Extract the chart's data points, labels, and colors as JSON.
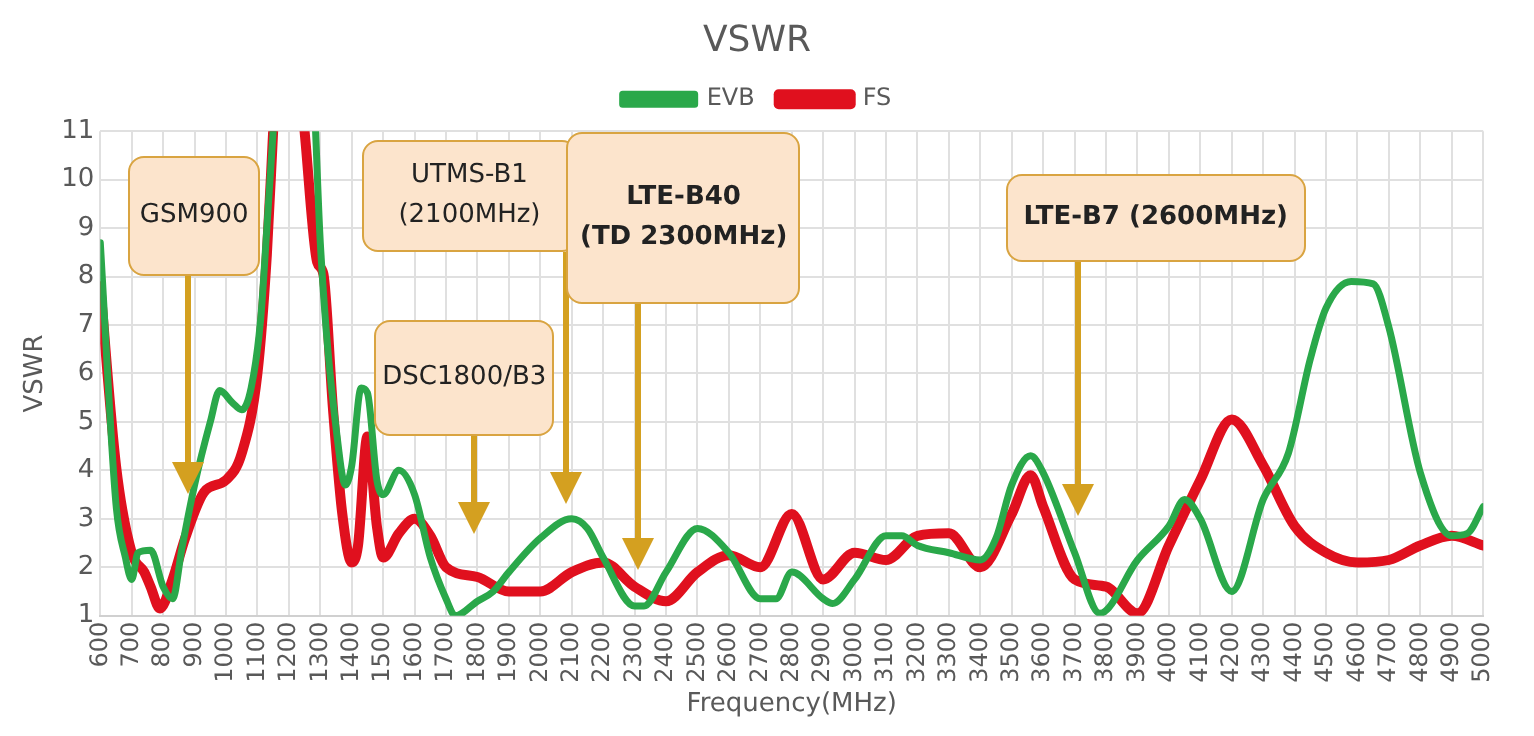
{
  "chart_data": {
    "type": "line",
    "title": "VSWR",
    "xlabel": "Frequency(MHz)",
    "ylabel": "VSWR",
    "xlim": [
      600,
      5000
    ],
    "xticks": [
      600,
      700,
      800,
      900,
      1000,
      1100,
      1200,
      1300,
      1400,
      1500,
      1600,
      1700,
      1800,
      1900,
      2000,
      2100,
      2200,
      2300,
      2400,
      2500,
      2600,
      2700,
      2800,
      2900,
      3000,
      3100,
      3200,
      3300,
      3400,
      3500,
      3600,
      3700,
      3800,
      3900,
      4000,
      4100,
      4200,
      4300,
      4400,
      4500,
      4600,
      4700,
      4800,
      4900,
      5000
    ],
    "ylim": [
      1,
      11
    ],
    "yticks": [
      1,
      2,
      3,
      4,
      5,
      6,
      7,
      8,
      9,
      10,
      11
    ],
    "grid": true,
    "legend": "top",
    "marker": "none",
    "line_style": "solid",
    "series": [
      {
        "name": "EVB",
        "color": "#2aa84a",
        "x": [
          600,
          650,
          680,
          700,
          720,
          760,
          800,
          830,
          860,
          900,
          950,
          980,
          1020,
          1050,
          1080,
          1110,
          1130,
          1150,
          1200,
          1285,
          1300,
          1360,
          1380,
          1400,
          1430,
          1450,
          1480,
          1500,
          1550,
          1600,
          1650,
          1700,
          1730,
          1800,
          1850,
          1900,
          2000,
          2100,
          2150,
          2200,
          2300,
          2330,
          2400,
          2500,
          2600,
          2700,
          2750,
          2800,
          2900,
          2930,
          3000,
          3100,
          3150,
          3200,
          3300,
          3400,
          3450,
          3500,
          3560,
          3600,
          3700,
          3780,
          3900,
          4000,
          4050,
          4100,
          4200,
          4300,
          4380,
          4450,
          4500,
          4580,
          4650,
          4700,
          4800,
          4900,
          4950,
          5000
        ],
        "values": [
          8.7,
          3.3,
          2.2,
          1.75,
          2.3,
          2.35,
          1.6,
          1.35,
          2.4,
          3.7,
          5.0,
          5.65,
          5.4,
          5.25,
          5.7,
          7.1,
          9.0,
          11,
          null,
          11,
          8.7,
          4.35,
          3.7,
          4.1,
          5.7,
          5.6,
          3.8,
          3.5,
          4.0,
          3.5,
          2.2,
          1.35,
          1.0,
          1.3,
          1.5,
          1.9,
          2.6,
          3.0,
          2.8,
          2.2,
          1.2,
          1.2,
          1.9,
          2.8,
          2.3,
          1.35,
          1.35,
          1.9,
          1.35,
          1.25,
          1.75,
          2.65,
          2.65,
          2.45,
          2.3,
          2.15,
          2.6,
          3.7,
          4.3,
          3.95,
          2.3,
          1.05,
          2.15,
          2.85,
          3.4,
          3.0,
          1.5,
          3.4,
          4.35,
          6.3,
          7.35,
          7.9,
          7.85,
          6.95,
          3.95,
          2.65,
          2.7,
          3.25
        ]
      },
      {
        "name": "FS",
        "color": "#e0101e",
        "x": [
          600,
          650,
          700,
          740,
          760,
          790,
          830,
          870,
          930,
          1000,
          1050,
          1100,
          1130,
          1150,
          1200,
          1250,
          1290,
          1310,
          1340,
          1370,
          1400,
          1420,
          1450,
          1480,
          1500,
          1550,
          1600,
          1650,
          1700,
          1800,
          1900,
          2000,
          2100,
          2200,
          2300,
          2400,
          2500,
          2600,
          2700,
          2800,
          2900,
          3000,
          3100,
          3200,
          3300,
          3400,
          3500,
          3560,
          3600,
          3700,
          3800,
          3900,
          4000,
          4100,
          4200,
          4300,
          4400,
          4500,
          4600,
          4700,
          4800,
          4900,
          5000
        ],
        "values": [
          7.8,
          4.1,
          2.3,
          1.9,
          1.6,
          1.15,
          1.75,
          2.6,
          3.55,
          3.8,
          4.35,
          6.0,
          8.45,
          11,
          null,
          11,
          8.3,
          8.05,
          5.3,
          3.1,
          2.1,
          2.45,
          4.7,
          2.85,
          2.2,
          2.7,
          3.0,
          2.65,
          2.0,
          1.8,
          1.5,
          1.5,
          1.9,
          2.1,
          1.6,
          1.3,
          1.9,
          2.25,
          2.0,
          3.1,
          1.75,
          2.3,
          2.15,
          2.65,
          2.7,
          2.0,
          3.1,
          3.9,
          3.25,
          1.75,
          1.6,
          1.05,
          2.45,
          3.8,
          5.05,
          4.1,
          2.85,
          2.3,
          2.1,
          2.15,
          2.45,
          2.65,
          2.45
        ]
      }
    ],
    "annotations": [
      "GSM900",
      "DSC1800/B3",
      "UTMS-B1\n(2100MHz)",
      "LTE-B40\n(TD 2300MHz)",
      "LTE-B7 (2600MHz)"
    ]
  }
}
